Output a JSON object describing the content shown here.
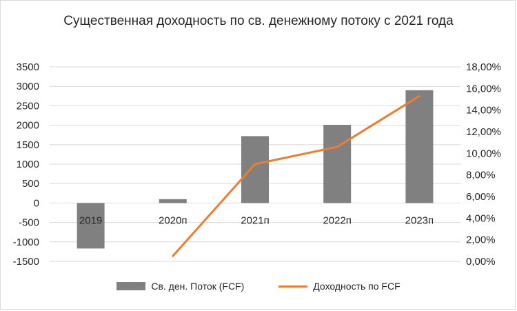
{
  "chart_data": {
    "type": "bar",
    "title": "Существенная доходность по св. денежному потоку с 2021 года",
    "categories": [
      "2019",
      "2020п",
      "2021п",
      "2022п",
      "2023п"
    ],
    "series": [
      {
        "name": "Св. ден. Поток (FCF)",
        "type": "bar",
        "axis": "left",
        "color": "#808080",
        "values": [
          -1170,
          100,
          1720,
          2010,
          2900
        ]
      },
      {
        "name": "Доходность по FCF",
        "type": "line",
        "axis": "right",
        "color": "#ed7d31",
        "values": [
          null,
          0.005,
          0.09,
          0.106,
          0.153
        ]
      }
    ],
    "y_left": {
      "min": -1500,
      "max": 3500,
      "step": 500,
      "tick_labels": [
        "-1500",
        "-1000",
        "-500",
        "0",
        "500",
        "1000",
        "1500",
        "2000",
        "2500",
        "3000",
        "3500"
      ]
    },
    "y_right": {
      "min": 0,
      "max": 0.18,
      "step": 0.02,
      "tick_labels": [
        "0,00%",
        "2,00%",
        "4,00%",
        "6,00%",
        "8,00%",
        "10,00%",
        "12,00%",
        "14,00%",
        "16,00%",
        "18,00%"
      ]
    },
    "grid": true,
    "legend_position": "bottom"
  }
}
